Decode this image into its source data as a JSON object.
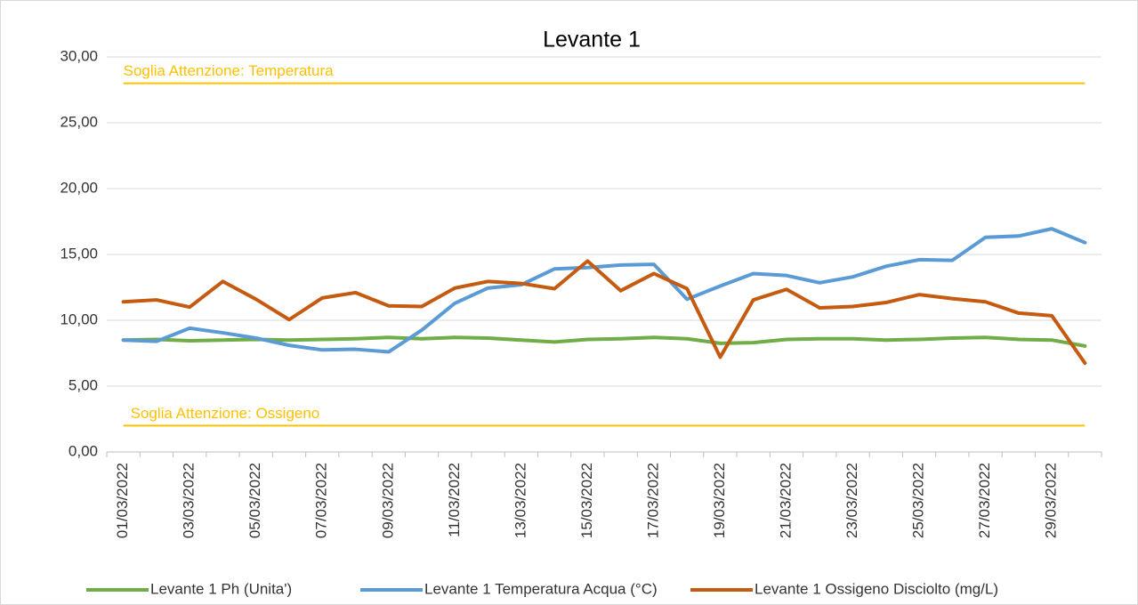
{
  "chart_data": {
    "type": "line",
    "title": "Levante 1",
    "categories": [
      "01/03/2022",
      null,
      "03/03/2022",
      null,
      "05/03/2022",
      null,
      "07/03/2022",
      null,
      "09/03/2022",
      null,
      "11/03/2022",
      null,
      "13/03/2022",
      null,
      "15/03/2022",
      null,
      "17/03/2022",
      null,
      "19/03/2022",
      null,
      "21/03/2022",
      null,
      "23/03/2022",
      null,
      "25/03/2022",
      null,
      "27/03/2022",
      null,
      "29/03/2022",
      null
    ],
    "series": [
      {
        "name": "Levante 1 Ph (Unita')",
        "color": "#70ad47",
        "values": [
          8.5,
          8.55,
          8.45,
          8.5,
          8.55,
          8.5,
          8.55,
          8.6,
          8.7,
          8.6,
          8.7,
          8.65,
          8.5,
          8.35,
          8.55,
          8.6,
          8.7,
          8.6,
          8.25,
          8.3,
          8.55,
          8.6,
          8.6,
          8.5,
          8.55,
          8.65,
          8.7,
          8.55,
          8.5,
          8.05
        ]
      },
      {
        "name": "Levante 1 Temperatura Acqua (°C)",
        "color": "#5b9bd5",
        "values": [
          8.5,
          8.4,
          9.4,
          9.05,
          8.65,
          8.1,
          7.75,
          7.8,
          7.6,
          9.25,
          11.3,
          12.45,
          12.7,
          13.9,
          14.0,
          14.2,
          14.25,
          11.6,
          12.6,
          13.55,
          13.4,
          12.85,
          13.3,
          14.1,
          14.6,
          14.55,
          16.3,
          16.4,
          16.95,
          15.9
        ]
      },
      {
        "name": "Levante 1 Ossigeno Disciolto (mg/L)",
        "color": "#c55a11",
        "values": [
          11.4,
          11.55,
          11.0,
          12.95,
          11.6,
          10.05,
          11.7,
          12.1,
          11.1,
          11.05,
          12.45,
          12.95,
          12.8,
          12.4,
          14.5,
          12.25,
          13.55,
          12.4,
          7.2,
          11.55,
          12.35,
          10.95,
          11.05,
          11.35,
          11.95,
          11.65,
          11.4,
          10.55,
          10.35,
          6.75
        ]
      }
    ],
    "annotations": [
      {
        "label": "Soglia Attenzione: Temperatura",
        "value": 28,
        "color": "#ffc000"
      },
      {
        "label": "Soglia Attenzione: Ossigeno",
        "value": 2,
        "color": "#ffc000"
      }
    ],
    "ylim": [
      0,
      30
    ],
    "yticks": [
      {
        "value": 0,
        "label": "0,00"
      },
      {
        "value": 5,
        "label": "5,00"
      },
      {
        "value": 10,
        "label": "10,00"
      },
      {
        "value": 15,
        "label": "15,00"
      },
      {
        "value": 20,
        "label": "20,00"
      },
      {
        "value": 25,
        "label": "25,00"
      },
      {
        "value": 30,
        "label": "30,00"
      }
    ],
    "grid": true
  }
}
